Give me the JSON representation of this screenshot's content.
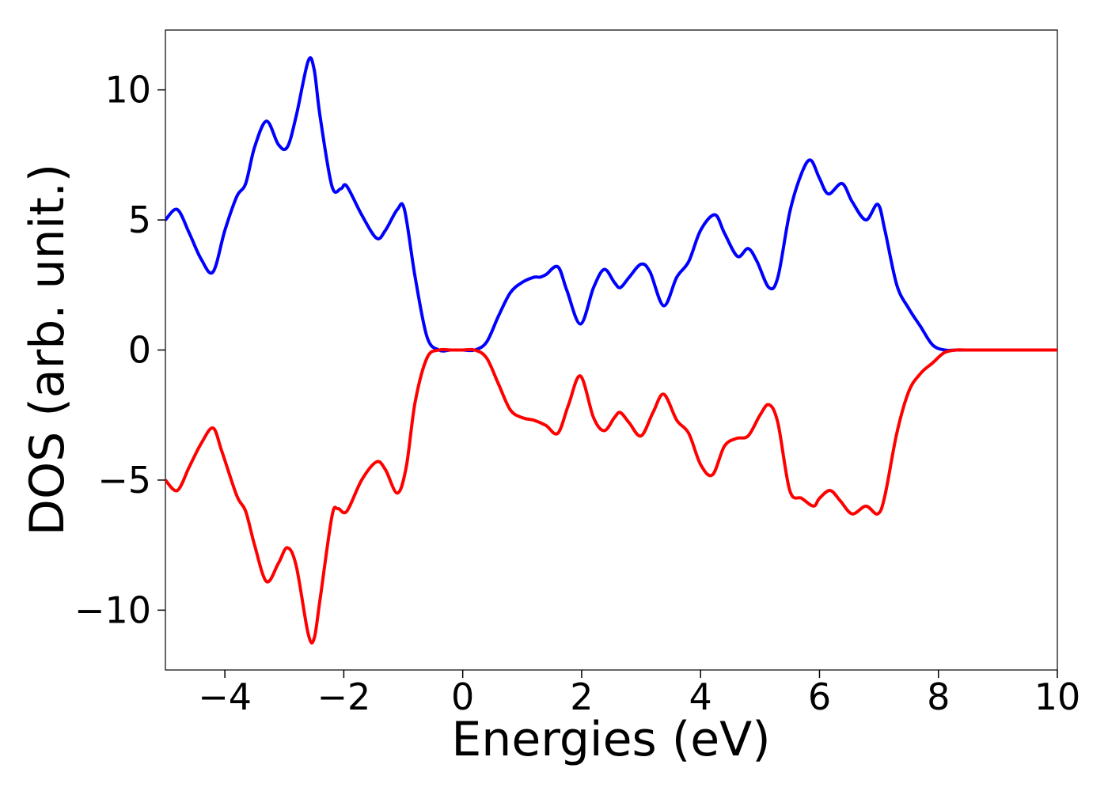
{
  "chart_data": {
    "type": "line",
    "title": "",
    "xlabel": "Energies (eV)",
    "ylabel": "DOS (arb. unit.)",
    "xlim": [
      -5,
      10
    ],
    "ylim": [
      -12.3,
      12.3
    ],
    "xticks": [
      -4,
      -2,
      0,
      2,
      4,
      6,
      8,
      10
    ],
    "xtick_labels": [
      "−4",
      "−2",
      "0",
      "2",
      "4",
      "6",
      "8",
      "10"
    ],
    "yticks": [
      10,
      5,
      0,
      -5,
      -10
    ],
    "ytick_labels": [
      "10",
      "5",
      "0",
      "−5",
      "−10"
    ],
    "grid": false,
    "legend": "none",
    "series": [
      {
        "color": "#0000ff",
        "x": [
          -5.0,
          -4.8,
          -4.6,
          -4.4,
          -4.2,
          -4.0,
          -3.8,
          -3.65,
          -3.5,
          -3.3,
          -3.1,
          -2.95,
          -2.8,
          -2.6,
          -2.5,
          -2.4,
          -2.2,
          -2.05,
          -1.95,
          -1.7,
          -1.45,
          -1.3,
          -1.1,
          -0.98,
          -0.8,
          -0.6,
          -0.4,
          -0.2,
          0.0,
          0.2,
          0.4,
          0.6,
          0.8,
          1.0,
          1.2,
          1.3,
          1.4,
          1.6,
          1.75,
          1.98,
          2.2,
          2.38,
          2.55,
          2.65,
          2.8,
          3.0,
          3.15,
          3.38,
          3.6,
          3.8,
          4.0,
          4.24,
          4.4,
          4.62,
          4.8,
          4.95,
          5.15,
          5.3,
          5.5,
          5.7,
          5.85,
          6.0,
          6.15,
          6.38,
          6.55,
          6.78,
          6.98,
          7.1,
          7.3,
          7.5,
          7.7,
          7.9,
          8.1,
          8.3,
          8.5,
          9.0,
          9.5,
          10.0
        ],
        "y": [
          5.0,
          5.4,
          4.5,
          3.5,
          3.0,
          4.6,
          5.9,
          6.4,
          7.8,
          8.8,
          7.9,
          7.8,
          9.0,
          11.1,
          10.8,
          9.0,
          6.3,
          6.2,
          6.3,
          5.2,
          4.3,
          4.6,
          5.4,
          5.4,
          2.8,
          0.5,
          0.0,
          0.0,
          0.0,
          0.0,
          0.3,
          1.3,
          2.2,
          2.6,
          2.8,
          2.8,
          2.9,
          3.2,
          2.3,
          1.0,
          2.4,
          3.1,
          2.6,
          2.4,
          2.8,
          3.3,
          3.0,
          1.7,
          2.8,
          3.4,
          4.6,
          5.2,
          4.5,
          3.6,
          3.9,
          3.4,
          2.4,
          2.8,
          5.3,
          6.8,
          7.3,
          6.6,
          6.0,
          6.4,
          5.7,
          5.0,
          5.6,
          4.6,
          2.5,
          1.6,
          0.9,
          0.2,
          0.0,
          0.0,
          0.0,
          0.0,
          0.0,
          0.0
        ]
      },
      {
        "color": "#ff0000",
        "x": [
          -5.0,
          -4.8,
          -4.6,
          -4.4,
          -4.2,
          -4.05,
          -3.8,
          -3.65,
          -3.5,
          -3.3,
          -3.1,
          -2.95,
          -2.8,
          -2.6,
          -2.5,
          -2.4,
          -2.2,
          -2.1,
          -1.95,
          -1.7,
          -1.45,
          -1.3,
          -1.1,
          -0.95,
          -0.8,
          -0.6,
          -0.4,
          -0.2,
          0.0,
          0.2,
          0.4,
          0.6,
          0.8,
          1.0,
          1.2,
          1.4,
          1.6,
          1.78,
          1.98,
          2.2,
          2.38,
          2.55,
          2.65,
          2.8,
          3.0,
          3.2,
          3.38,
          3.6,
          3.8,
          4.0,
          4.2,
          4.4,
          4.6,
          4.8,
          5.0,
          5.15,
          5.3,
          5.5,
          5.7,
          5.9,
          6.0,
          6.18,
          6.35,
          6.55,
          6.78,
          6.98,
          7.1,
          7.3,
          7.5,
          7.7,
          7.9,
          8.1,
          8.3,
          8.5,
          9.0,
          9.5,
          10.0
        ],
        "y": [
          -5.0,
          -5.4,
          -4.5,
          -3.6,
          -3.0,
          -3.9,
          -5.6,
          -6.2,
          -7.5,
          -8.9,
          -8.2,
          -7.6,
          -8.3,
          -10.9,
          -11.1,
          -9.6,
          -6.4,
          -6.1,
          -6.2,
          -5.0,
          -4.3,
          -4.6,
          -5.5,
          -4.5,
          -2.0,
          -0.3,
          0.0,
          0.0,
          0.0,
          0.0,
          -0.3,
          -1.3,
          -2.3,
          -2.6,
          -2.7,
          -2.9,
          -3.2,
          -2.1,
          -1.0,
          -2.6,
          -3.1,
          -2.6,
          -2.4,
          -2.8,
          -3.3,
          -2.4,
          -1.7,
          -2.7,
          -3.2,
          -4.4,
          -4.8,
          -3.7,
          -3.4,
          -3.3,
          -2.5,
          -2.1,
          -2.8,
          -5.4,
          -5.7,
          -6.0,
          -5.7,
          -5.4,
          -5.8,
          -6.3,
          -6.0,
          -6.3,
          -5.6,
          -3.2,
          -1.6,
          -0.9,
          -0.5,
          -0.1,
          0.0,
          0.0,
          0.0,
          0.0,
          0.0
        ]
      }
    ]
  }
}
